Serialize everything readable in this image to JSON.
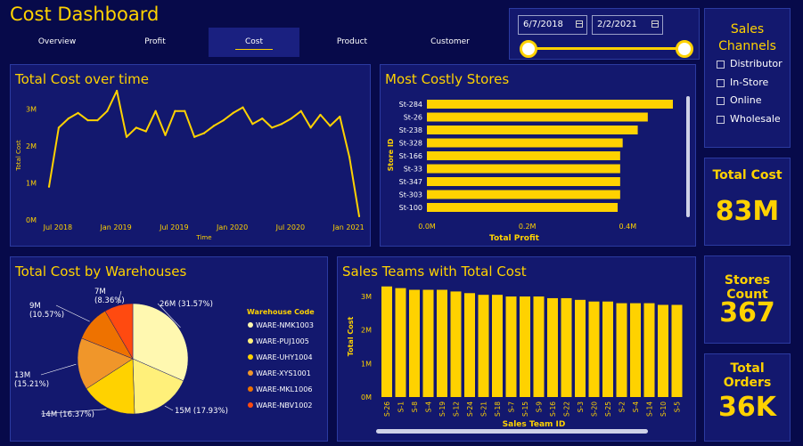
{
  "app_title": "Cost Dashboard",
  "tabs": [
    {
      "label": "Overview",
      "active": false
    },
    {
      "label": "Profit",
      "active": false
    },
    {
      "label": "Cost",
      "active": true
    },
    {
      "label": "Product",
      "active": false
    },
    {
      "label": "Customer",
      "active": false
    }
  ],
  "date_filter": {
    "start": "6/7/2018",
    "end": "2/2/2021",
    "start_fraction": 0,
    "end_fraction": 1
  },
  "sales_channels": {
    "title": "Sales Channels",
    "options": [
      "Distributor",
      "In-Store",
      "Online",
      "Wholesale"
    ]
  },
  "kpis": {
    "total_cost": {
      "label": "Total Cost",
      "value": "83M"
    },
    "stores_count": {
      "label": "Stores Count",
      "value": "367"
    },
    "total_orders": {
      "label": "Total Orders",
      "value": "36K"
    }
  },
  "colors": {
    "accent": "#ffd200",
    "background": "#070a4a",
    "panel": "#13186e",
    "border": "#2b3aa0"
  },
  "icons": {
    "date": "calendar-icon",
    "checkbox": "checkbox-icon"
  },
  "chart_data": [
    {
      "id": "cost_over_time",
      "type": "line",
      "title": "Total Cost over time",
      "xlabel": "Time",
      "ylabel": "Total Cost",
      "x_ticks": [
        "Jul 2018",
        "Jan 2019",
        "Jul 2019",
        "Jan 2020",
        "Jul 2020",
        "Jan 2021"
      ],
      "y_ticks": [
        "0M",
        "1M",
        "2M",
        "3M"
      ],
      "ylim": [
        0,
        3.5
      ],
      "x": [
        "2018-06",
        "2018-07",
        "2018-08",
        "2018-09",
        "2018-10",
        "2018-11",
        "2018-12",
        "2019-01",
        "2019-02",
        "2019-03",
        "2019-04",
        "2019-05",
        "2019-06",
        "2019-07",
        "2019-08",
        "2019-09",
        "2019-10",
        "2019-11",
        "2019-12",
        "2020-01",
        "2020-02",
        "2020-03",
        "2020-04",
        "2020-05",
        "2020-06",
        "2020-07",
        "2020-08",
        "2020-09",
        "2020-10",
        "2020-11",
        "2020-12",
        "2021-01",
        "2021-02"
      ],
      "values": [
        0.9,
        2.5,
        2.75,
        2.9,
        2.7,
        2.7,
        2.95,
        3.5,
        2.25,
        2.5,
        2.4,
        2.95,
        2.3,
        2.95,
        2.95,
        2.25,
        2.35,
        2.55,
        2.7,
        2.9,
        3.05,
        2.6,
        2.75,
        2.5,
        2.6,
        2.75,
        2.95,
        2.5,
        2.85,
        2.55,
        2.8,
        1.7,
        0.1
      ]
    },
    {
      "id": "most_costly_stores",
      "type": "bar",
      "orientation": "horizontal",
      "title": "Most Costly Stores",
      "xlabel": "Total Profit",
      "ylabel": "Store ID",
      "categories": [
        "St-284",
        "St-26",
        "St-238",
        "St-328",
        "St-166",
        "St-33",
        "St-347",
        "St-303",
        "St-100"
      ],
      "values": [
        0.49,
        0.44,
        0.42,
        0.39,
        0.385,
        0.385,
        0.385,
        0.385,
        0.38
      ],
      "x_ticks": [
        "0.0M",
        "0.2M",
        "0.4M"
      ],
      "xlim": [
        0,
        0.49
      ]
    },
    {
      "id": "cost_by_warehouses",
      "type": "pie",
      "title": "Total Cost by Warehouses",
      "legend_title": "Warehouse Code",
      "categories": [
        "WARE-NMK1003",
        "WARE-PUJ1005",
        "WARE-UHY1004",
        "WARE-XYS1001",
        "WARE-MKL1006",
        "WARE-NBV1002"
      ],
      "values": [
        31.57,
        17.93,
        16.37,
        15.21,
        10.57,
        8.36
      ],
      "labels": [
        "26M (31.57%)",
        "15M (17.93%)",
        "14M (16.37%)",
        "13M\n(15.21%)",
        "9M\n(10.57%)",
        "7M\n(8.36%)"
      ],
      "colors": [
        "#fff8b0",
        "#fff07a",
        "#ffd200",
        "#f0962a",
        "#ee7200",
        "#ff4a10"
      ],
      "legend_placement": "right"
    },
    {
      "id": "sales_teams_cost",
      "type": "bar",
      "title": "Sales Teams with Total Cost",
      "xlabel": "Sales Team ID",
      "ylabel": "Total Cost",
      "categories": [
        "S-26",
        "S-1",
        "S-8",
        "S-4",
        "S-19",
        "S-12",
        "S-24",
        "S-21",
        "S-18",
        "S-7",
        "S-15",
        "S-9",
        "S-16",
        "S-22",
        "S-3",
        "S-20",
        "S-25",
        "S-2",
        "S-4",
        "S-14",
        "S-10",
        "S-5"
      ],
      "values": [
        3.3,
        3.25,
        3.2,
        3.2,
        3.2,
        3.15,
        3.1,
        3.05,
        3.05,
        3.0,
        3.0,
        3.0,
        2.95,
        2.95,
        2.9,
        2.85,
        2.85,
        2.8,
        2.8,
        2.8,
        2.75,
        2.75
      ],
      "y_ticks": [
        "0M",
        "1M",
        "2M",
        "3M"
      ],
      "ylim": [
        0,
        3.4
      ]
    }
  ]
}
